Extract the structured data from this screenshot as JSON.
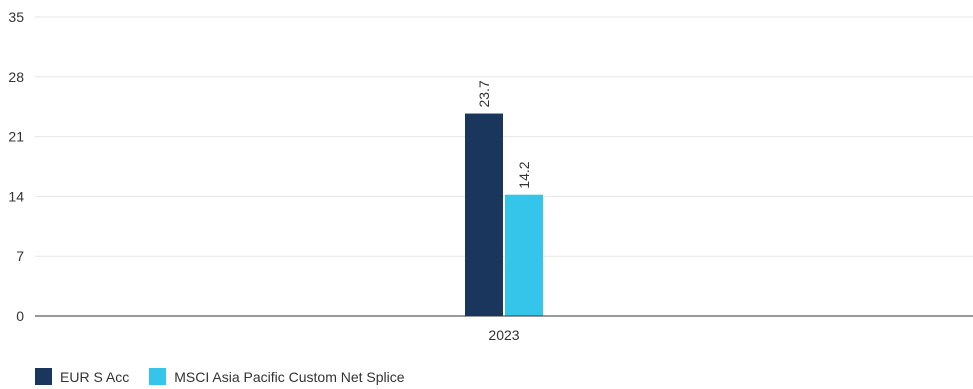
{
  "chart_data": {
    "type": "bar",
    "categories": [
      "2023"
    ],
    "series": [
      {
        "name": "EUR S Acc",
        "values": [
          23.7
        ],
        "color": "#1b365d"
      },
      {
        "name": "MSCI Asia Pacific Custom Net Splice",
        "values": [
          14.2
        ],
        "color": "#36c5ea"
      }
    ],
    "ylim": [
      0,
      35
    ],
    "yticks": [
      "0",
      "7",
      "14",
      "21",
      "28",
      "35"
    ],
    "data_labels": [
      "23.7",
      "14.2"
    ],
    "grid": true,
    "legend_position": "bottom-left",
    "title": "",
    "xlabel": "",
    "ylabel": ""
  }
}
